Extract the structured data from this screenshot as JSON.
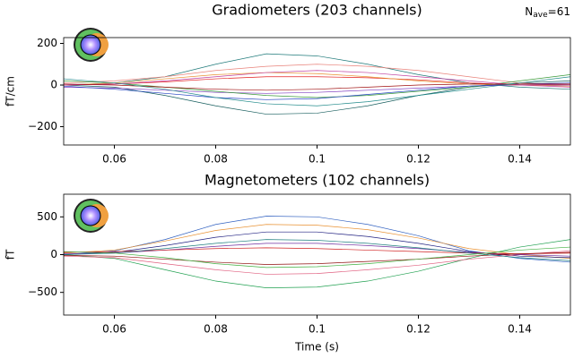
{
  "chart_data": [
    {
      "type": "line",
      "title": "Gradiometers (203 channels)",
      "ylabel": "fT/cm",
      "annotation": {
        "symbol": "N",
        "subscript": "ave",
        "text": "=61"
      },
      "x": [
        0.05,
        0.06,
        0.07,
        0.08,
        0.09,
        0.1,
        0.11,
        0.12,
        0.13,
        0.14,
        0.15
      ],
      "xlim": [
        0.05,
        0.15
      ],
      "xticks": [
        0.06,
        0.08,
        0.1,
        0.12,
        0.14
      ],
      "ylim": [
        -288,
        228
      ],
      "yticks": [
        {
          "value": -200,
          "label": "−200"
        },
        0,
        200
      ],
      "series": [
        {
          "color": "#1f7a7a",
          "values": [
            0,
            10,
            40,
            100,
            150,
            140,
            100,
            50,
            10,
            -10,
            -20
          ]
        },
        {
          "color": "#175e5e",
          "values": [
            0,
            -10,
            -50,
            -100,
            -140,
            -135,
            -100,
            -50,
            -10,
            10,
            20
          ]
        },
        {
          "color": "#e8827a",
          "values": [
            10,
            20,
            40,
            70,
            90,
            100,
            90,
            70,
            40,
            10,
            0
          ]
        },
        {
          "color": "#e32020",
          "values": [
            0,
            5,
            15,
            30,
            40,
            40,
            35,
            25,
            10,
            0,
            5
          ]
        },
        {
          "color": "#8040c0",
          "values": [
            -10,
            -15,
            -25,
            -35,
            -40,
            -35,
            -25,
            -15,
            -5,
            0,
            0
          ]
        },
        {
          "color": "#3a9a3a",
          "values": [
            20,
            10,
            -10,
            -30,
            -50,
            -60,
            -50,
            -30,
            -10,
            20,
            50
          ]
        },
        {
          "color": "#e89030",
          "values": [
            0,
            10,
            30,
            50,
            60,
            55,
            40,
            20,
            5,
            0,
            -5
          ]
        },
        {
          "color": "#2040c0",
          "values": [
            -5,
            -20,
            -40,
            -60,
            -70,
            -65,
            -45,
            -25,
            -5,
            5,
            10
          ]
        },
        {
          "color": "#c040a0",
          "values": [
            0,
            5,
            20,
            40,
            60,
            70,
            60,
            40,
            20,
            0,
            -10
          ]
        },
        {
          "color": "#a01010",
          "values": [
            5,
            0,
            -10,
            -20,
            -25,
            -20,
            -10,
            0,
            5,
            5,
            5
          ]
        },
        {
          "color": "#208a8a",
          "values": [
            30,
            10,
            -20,
            -60,
            -90,
            -100,
            -80,
            -50,
            -20,
            10,
            40
          ]
        }
      ]
    },
    {
      "type": "line",
      "title": "Magnetometers (102 channels)",
      "ylabel": "fT",
      "xlabel": "Time (s)",
      "x": [
        0.05,
        0.06,
        0.07,
        0.08,
        0.09,
        0.1,
        0.11,
        0.12,
        0.13,
        0.14,
        0.15
      ],
      "xlim": [
        0.05,
        0.15
      ],
      "xticks": [
        0.06,
        0.08,
        0.1,
        0.12,
        0.14
      ],
      "ylim": [
        -800,
        800
      ],
      "yticks": [
        {
          "value": -500,
          "label": "−500"
        },
        0,
        500
      ],
      "series": [
        {
          "color": "#3060c0",
          "values": [
            0,
            50,
            200,
            400,
            510,
            500,
            400,
            250,
            50,
            -50,
            -100
          ]
        },
        {
          "color": "#20a050",
          "values": [
            0,
            -50,
            -200,
            -350,
            -440,
            -430,
            -350,
            -220,
            -50,
            100,
            200
          ]
        },
        {
          "color": "#e89030",
          "values": [
            20,
            60,
            180,
            320,
            400,
            390,
            330,
            220,
            80,
            0,
            -50
          ]
        },
        {
          "color": "#202080",
          "values": [
            0,
            30,
            120,
            230,
            300,
            300,
            240,
            150,
            40,
            -20,
            -40
          ]
        },
        {
          "color": "#e06080",
          "values": [
            -20,
            -40,
            -120,
            -200,
            -260,
            -250,
            -200,
            -140,
            -60,
            0,
            50
          ]
        },
        {
          "color": "#7030a0",
          "values": [
            10,
            20,
            60,
            110,
            150,
            150,
            120,
            80,
            30,
            0,
            -20
          ]
        },
        {
          "color": "#d02020",
          "values": [
            30,
            40,
            60,
            80,
            90,
            80,
            60,
            40,
            20,
            10,
            20
          ]
        },
        {
          "color": "#901010",
          "values": [
            -10,
            -20,
            -60,
            -100,
            -130,
            -120,
            -90,
            -60,
            -20,
            10,
            30
          ]
        },
        {
          "color": "#208080",
          "values": [
            0,
            20,
            80,
            150,
            200,
            190,
            150,
            90,
            20,
            -40,
            -80
          ]
        },
        {
          "color": "#40b040",
          "values": [
            40,
            20,
            -40,
            -120,
            -170,
            -160,
            -120,
            -60,
            0,
            60,
            100
          ]
        }
      ]
    }
  ]
}
